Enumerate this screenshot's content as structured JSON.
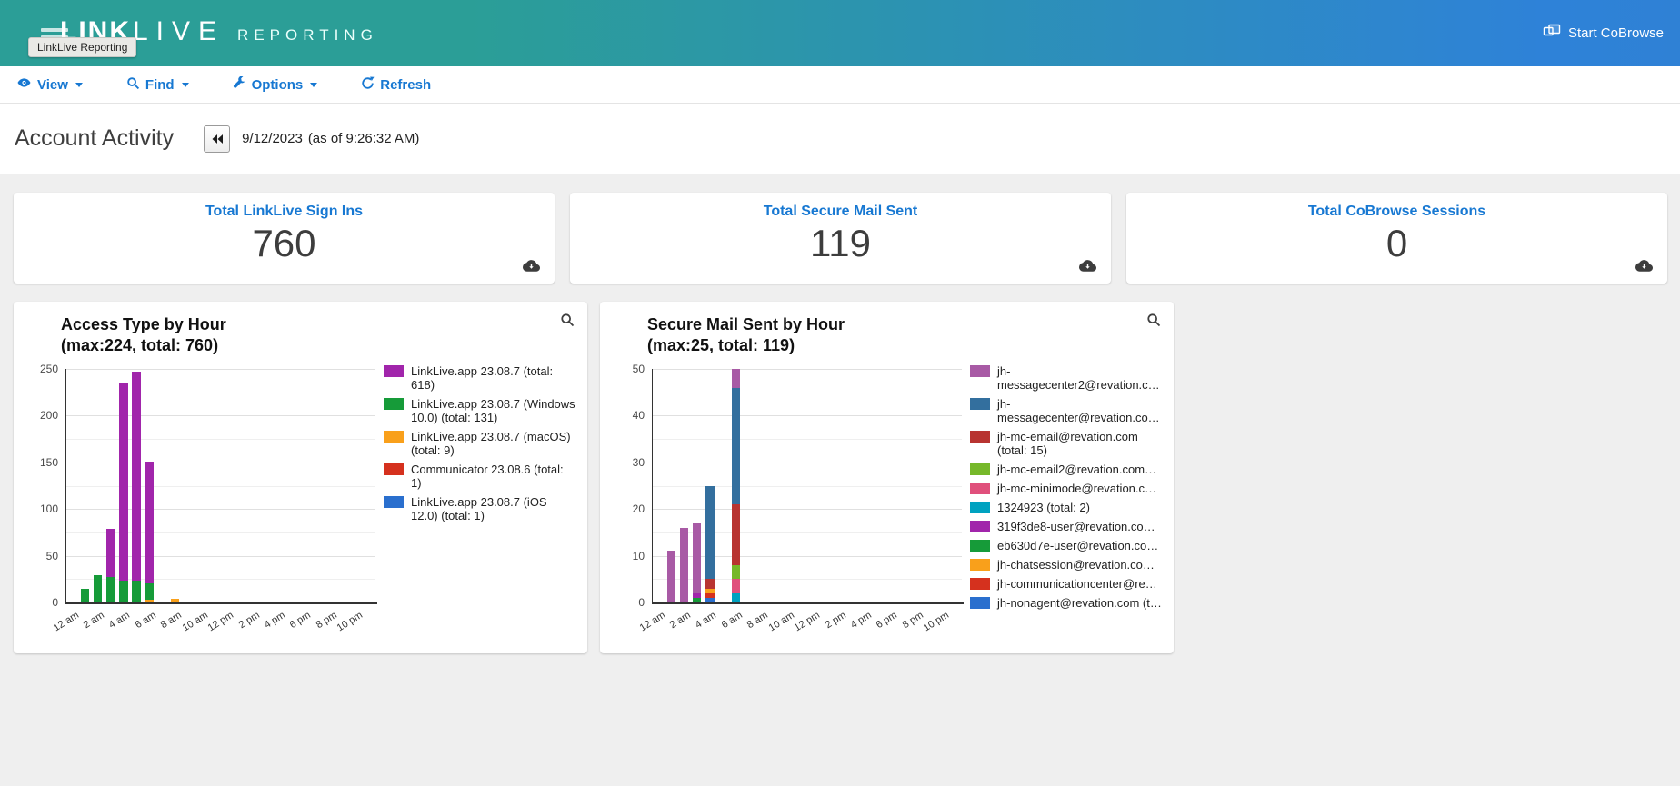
{
  "header": {
    "logo_bold": "LINK",
    "logo_light": "LIVE",
    "logo_suffix": "REPORTING",
    "tooltip": "LinkLive Reporting",
    "cobrowse_label": "Start CoBrowse"
  },
  "toolbar": {
    "view_label": "View",
    "find_label": "Find",
    "options_label": "Options",
    "refresh_label": "Refresh"
  },
  "page": {
    "title": "Account Activity",
    "date": "9/12/2023",
    "as_of": "(as of 9:26:32 AM)"
  },
  "stats": [
    {
      "label": "Total LinkLive Sign Ins",
      "value": "760"
    },
    {
      "label": "Total Secure Mail Sent",
      "value": "119"
    },
    {
      "label": "Total CoBrowse Sessions",
      "value": "0"
    }
  ],
  "colors": {
    "accent_blue": "#1778d2",
    "header_teal": "#2b9e97",
    "header_blue": "#2e82d8",
    "page_bg": "#efefef"
  },
  "chart_data": [
    {
      "type": "bar",
      "stacked": true,
      "title": "Access Type by Hour",
      "subtitle": "(max:224, total: 760)",
      "ylim": [
        0,
        250
      ],
      "ytick_step": 50,
      "minor_step": 25,
      "grid": true,
      "legend_position": "right",
      "x_categories": [
        "12 am",
        "1 am",
        "2 am",
        "3 am",
        "4 am",
        "5 am",
        "6 am",
        "7 am",
        "8 am",
        "9 am",
        "10 am",
        "11 am",
        "12 pm",
        "1 pm",
        "2 pm",
        "3 pm",
        "4 pm",
        "5 pm",
        "6 pm",
        "7 pm",
        "8 pm",
        "9 pm",
        "10 pm",
        "11 pm"
      ],
      "xtick_every": 2,
      "series": [
        {
          "key": "app",
          "label": "LinkLive.app 23.08.7 (total:\n618)",
          "color": "#a125ab",
          "total": 618
        },
        {
          "key": "windows",
          "label": "LinkLive.app 23.08.7 (Windows\n10.0) (total: 131)",
          "color": "#169b39",
          "total": 131
        },
        {
          "key": "macos",
          "label": "LinkLive.app 23.08.7 (macOS)\n(total: 9)",
          "color": "#f9a01b",
          "total": 9
        },
        {
          "key": "communicator",
          "label": "Communicator 23.08.6 (total:\n1)",
          "color": "#d5311e",
          "total": 1
        },
        {
          "key": "ios",
          "label": "LinkLive.app 23.08.7 (iOS\n12.0) (total: 1)",
          "color": "#2a6fce",
          "total": 1
        }
      ],
      "bars": [
        {
          "hour": 1,
          "segments": [
            [
              "windows",
              15
            ]
          ]
        },
        {
          "hour": 2,
          "segments": [
            [
              "windows",
              29
            ]
          ]
        },
        {
          "hour": 3,
          "segments": [
            [
              "macos",
              1
            ],
            [
              "windows",
              26
            ],
            [
              "app",
              52
            ]
          ]
        },
        {
          "hour": 4,
          "segments": [
            [
              "communicator",
              1
            ],
            [
              "windows",
              22
            ],
            [
              "app",
              211
            ]
          ]
        },
        {
          "hour": 5,
          "segments": [
            [
              "ios",
              1
            ],
            [
              "windows",
              22
            ],
            [
              "app",
              224
            ]
          ]
        },
        {
          "hour": 6,
          "segments": [
            [
              "macos",
              3
            ],
            [
              "windows",
              17
            ],
            [
              "app",
              131
            ]
          ]
        },
        {
          "hour": 7,
          "segments": [
            [
              "macos",
              1
            ]
          ]
        },
        {
          "hour": 8,
          "segments": [
            [
              "macos",
              4
            ]
          ]
        }
      ]
    },
    {
      "type": "bar",
      "stacked": true,
      "title": "Secure Mail Sent by Hour",
      "subtitle": "(max:25, total: 119)",
      "ylim": [
        0,
        50
      ],
      "ytick_step": 10,
      "minor_step": 5,
      "grid": true,
      "legend_position": "right",
      "x_categories": [
        "12 am",
        "1 am",
        "2 am",
        "3 am",
        "4 am",
        "5 am",
        "6 am",
        "7 am",
        "8 am",
        "9 am",
        "10 am",
        "11 am",
        "12 pm",
        "1 pm",
        "2 pm",
        "3 pm",
        "4 pm",
        "5 pm",
        "6 pm",
        "7 pm",
        "8 pm",
        "9 pm",
        "10 pm",
        "11 pm"
      ],
      "xtick_every": 2,
      "series": [
        {
          "key": "mc2",
          "label": "jh-\nmessagecenter2@revation.c…",
          "color": "#a85aa5",
          "total": 46
        },
        {
          "key": "mc",
          "label": "jh-\nmessagecenter@revation.co…",
          "color": "#336f9e",
          "total": 45
        },
        {
          "key": "email",
          "label": "jh-mc-email@revation.com\n(total: 15)",
          "color": "#b83431",
          "total": 15
        },
        {
          "key": "email2",
          "label": "jh-mc-email2@revation.com…",
          "color": "#76b82a",
          "total": 3
        },
        {
          "key": "minimode",
          "label": "jh-mc-minimode@revation.c…",
          "color": "#e0507c",
          "total": 3
        },
        {
          "key": "acct1324923",
          "label": "1324923 (total: 2)",
          "color": "#00a2c0",
          "total": 2
        },
        {
          "key": "user319",
          "label": "319f3de8-user@revation.co…",
          "color": "#a125ab",
          "total": 1
        },
        {
          "key": "usereb",
          "label": "eb630d7e-user@revation.co…",
          "color": "#169b39",
          "total": 1
        },
        {
          "key": "chatsession",
          "label": "jh-chatsession@revation.co…",
          "color": "#f9a01b",
          "total": 1
        },
        {
          "key": "commcenter",
          "label": "jh-communicationcenter@re…",
          "color": "#d5311e",
          "total": 1
        },
        {
          "key": "nonagent",
          "label": "jh-nonagent@revation.com (t…",
          "color": "#2a6fce",
          "total": 1
        }
      ],
      "bars": [
        {
          "hour": 1,
          "segments": [
            [
              "mc2",
              11
            ]
          ]
        },
        {
          "hour": 2,
          "segments": [
            [
              "mc2",
              16
            ]
          ]
        },
        {
          "hour": 3,
          "segments": [
            [
              "usereb",
              1
            ],
            [
              "user319",
              1
            ],
            [
              "mc2",
              15
            ]
          ]
        },
        {
          "hour": 4,
          "segments": [
            [
              "nonagent",
              1
            ],
            [
              "commcenter",
              1
            ],
            [
              "chatsession",
              1
            ],
            [
              "email",
              2
            ],
            [
              "mc",
              20
            ]
          ]
        },
        {
          "hour": 6,
          "segments": [
            [
              "acct1324923",
              2
            ],
            [
              "minimode",
              3
            ],
            [
              "email2",
              3
            ],
            [
              "email",
              13
            ],
            [
              "mc",
              25
            ],
            [
              "mc2",
              4
            ]
          ]
        }
      ]
    }
  ]
}
